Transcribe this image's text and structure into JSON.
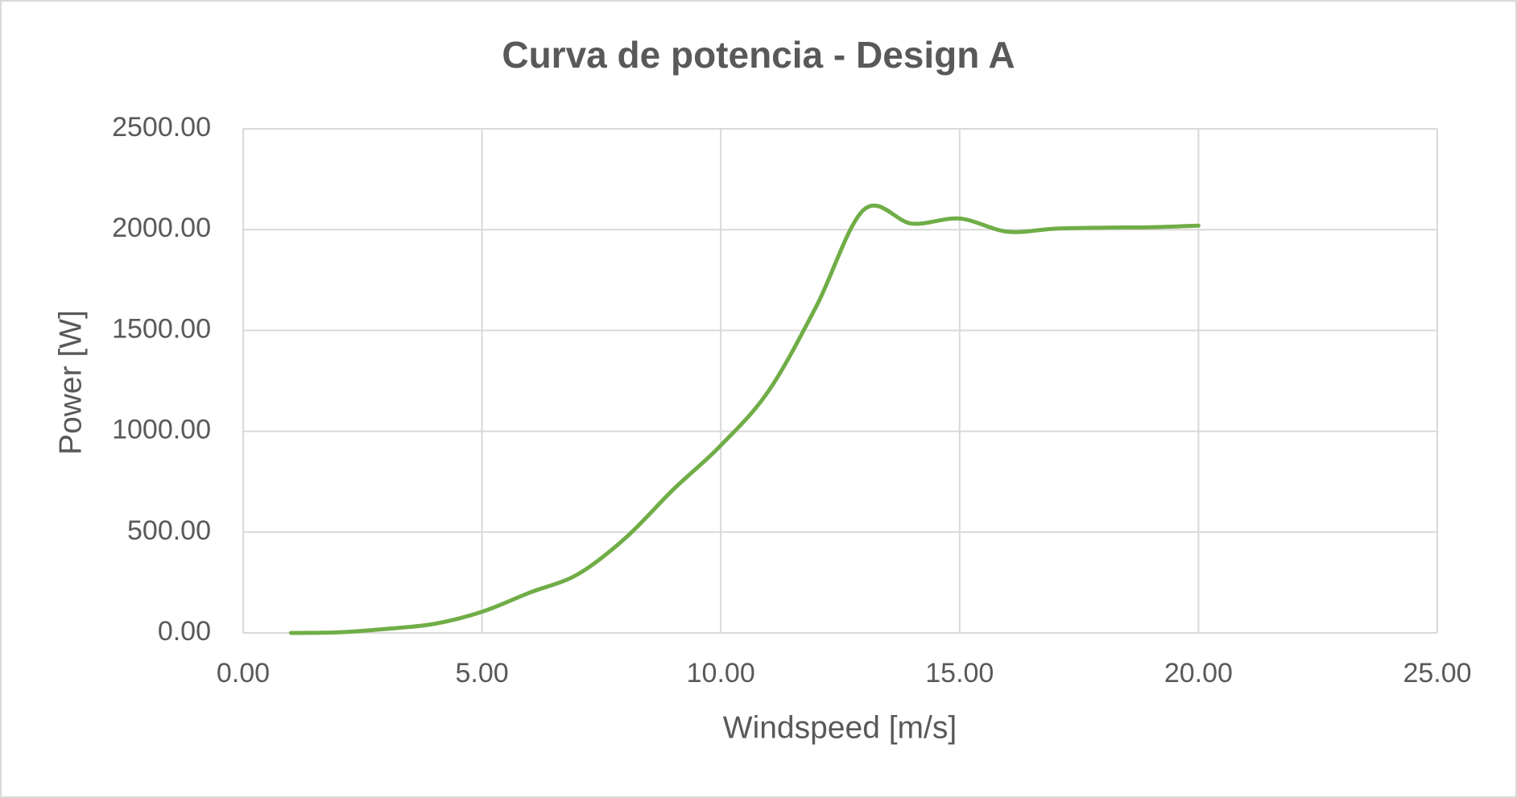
{
  "chart_data": {
    "type": "line",
    "title": "Curva de potencia - Design A",
    "x_label": "Windspeed [m/s]",
    "y_label": "Power [W]",
    "x": [
      1,
      2,
      3,
      4,
      5,
      6,
      7,
      8,
      9,
      10,
      11,
      12,
      13,
      14,
      15,
      16,
      17,
      18,
      19,
      20
    ],
    "series": [
      {
        "name": "Design A",
        "color": "#70ad47",
        "values": [
          0,
          3,
          20,
          45,
          105,
          200,
          290,
          470,
          710,
          930,
          1200,
          1620,
          2100,
          2030,
          2055,
          1990,
          2005,
          2010,
          2012,
          2020
        ]
      }
    ],
    "xlim": [
      0,
      25
    ],
    "xticks": [
      {
        "value": 0,
        "label": "0.00"
      },
      {
        "value": 5,
        "label": "5.00"
      },
      {
        "value": 10,
        "label": "10.00"
      },
      {
        "value": 15,
        "label": "15.00"
      },
      {
        "value": 20,
        "label": "20.00"
      },
      {
        "value": 25,
        "label": "25.00"
      }
    ],
    "ylim": [
      0,
      2500
    ],
    "yticks": [
      {
        "value": 0,
        "label": "0.00"
      },
      {
        "value": 500,
        "label": "500.00"
      },
      {
        "value": 1000,
        "label": "1000.00"
      },
      {
        "value": 1500,
        "label": "1500.00"
      },
      {
        "value": 2000,
        "label": "2000.00"
      },
      {
        "value": 2500,
        "label": "2500.00"
      }
    ],
    "grid": true,
    "smooth": true
  }
}
